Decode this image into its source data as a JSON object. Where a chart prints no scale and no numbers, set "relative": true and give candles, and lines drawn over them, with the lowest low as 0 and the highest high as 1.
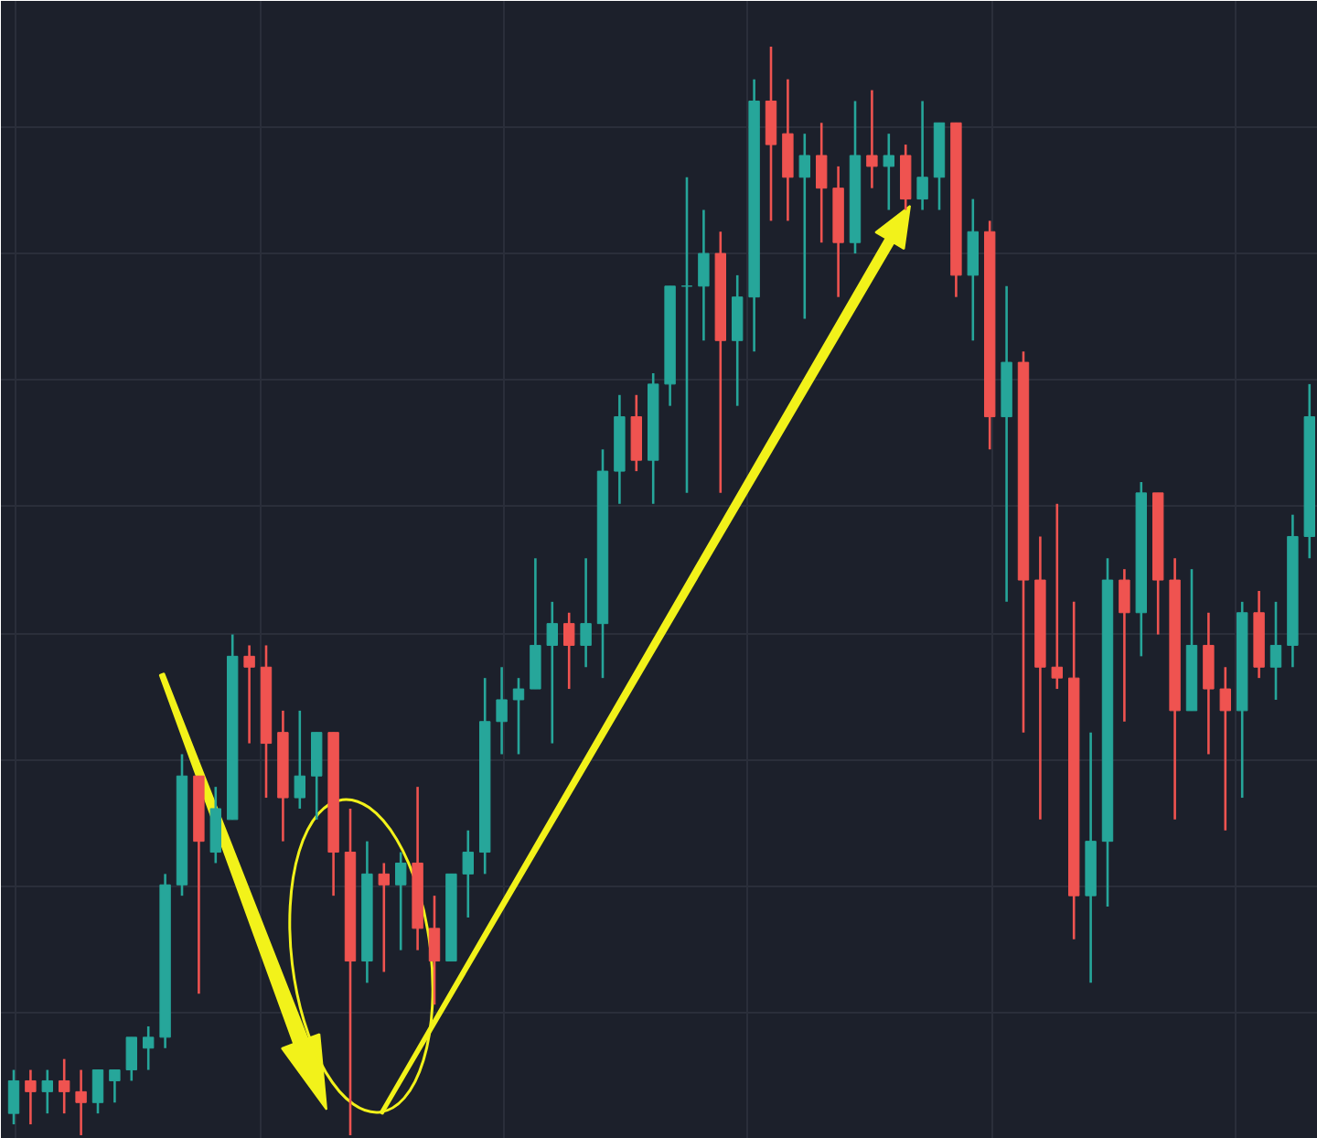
{
  "chart_data": {
    "type": "candlestick",
    "relative": true,
    "grid": true,
    "categories": [
      null,
      null,
      null,
      null,
      null,
      null,
      null,
      null,
      null,
      null,
      null,
      null,
      null,
      null,
      null,
      null,
      null,
      null,
      null,
      null,
      null,
      null,
      null,
      null,
      null,
      null,
      null,
      null,
      null,
      null,
      null,
      null,
      null,
      null,
      null,
      null,
      null,
      null,
      null,
      null,
      null,
      null,
      null,
      null,
      null,
      null,
      null,
      null,
      null,
      null,
      null,
      null,
      null,
      null,
      null,
      null,
      null,
      null,
      null,
      null,
      null,
      null,
      null,
      null,
      null,
      null,
      null,
      null,
      null,
      null,
      null,
      null,
      null,
      null,
      null,
      null,
      null,
      null
    ],
    "ohlc": [
      [
        0.02,
        0.06,
        0.01,
        0.05
      ],
      [
        0.05,
        0.06,
        0.01,
        0.04
      ],
      [
        0.04,
        0.06,
        0.02,
        0.05
      ],
      [
        0.05,
        0.07,
        0.02,
        0.04
      ],
      [
        0.04,
        0.06,
        0,
        0.03
      ],
      [
        0.03,
        0.06,
        0.02,
        0.06
      ],
      [
        0.05,
        0.06,
        0.03,
        0.06
      ],
      [
        0.06,
        0.09,
        0.05,
        0.09
      ],
      [
        0.08,
        0.1,
        0.06,
        0.09
      ],
      [
        0.09,
        0.24,
        0.08,
        0.23
      ],
      [
        0.23,
        0.35,
        0.22,
        0.33
      ],
      [
        0.33,
        0.33,
        0.13,
        0.27
      ],
      [
        0.26,
        0.32,
        0.25,
        0.3
      ],
      [
        0.29,
        0.46,
        0.29,
        0.44
      ],
      [
        0.44,
        0.45,
        0.36,
        0.43
      ],
      [
        0.43,
        0.45,
        0.31,
        0.36
      ],
      [
        0.37,
        0.39,
        0.27,
        0.31
      ],
      [
        0.31,
        0.39,
        0.3,
        0.33
      ],
      [
        0.33,
        0.37,
        0.29,
        0.37
      ],
      [
        0.37,
        0.37,
        0.22,
        0.26
      ],
      [
        0.26,
        0.3,
        0,
        0.16
      ],
      [
        0.16,
        0.27,
        0.14,
        0.24
      ],
      [
        0.24,
        0.25,
        0.15,
        0.23
      ],
      [
        0.23,
        0.26,
        0.17,
        0.25
      ],
      [
        0.25,
        0.32,
        0.17,
        0.19
      ],
      [
        0.19,
        0.22,
        0.12,
        0.16
      ],
      [
        0.16,
        0.24,
        0.16,
        0.24
      ],
      [
        0.24,
        0.28,
        0.2,
        0.26
      ],
      [
        0.26,
        0.42,
        0.24,
        0.38
      ],
      [
        0.38,
        0.43,
        0.35,
        0.4
      ],
      [
        0.4,
        0.42,
        0.35,
        0.41
      ],
      [
        0.41,
        0.53,
        0.41,
        0.45
      ],
      [
        0.45,
        0.49,
        0.36,
        0.47
      ],
      [
        0.47,
        0.48,
        0.41,
        0.45
      ],
      [
        0.45,
        0.53,
        0.43,
        0.47
      ],
      [
        0.47,
        0.63,
        0.42,
        0.61
      ],
      [
        0.61,
        0.68,
        0.58,
        0.66
      ],
      [
        0.66,
        0.68,
        0.61,
        0.62
      ],
      [
        0.62,
        0.7,
        0.58,
        0.69
      ],
      [
        0.69,
        0.78,
        0.67,
        0.78
      ],
      [
        0.78,
        0.88,
        0.59,
        0.78
      ],
      [
        0.78,
        0.85,
        0.73,
        0.81
      ],
      [
        0.81,
        0.83,
        0.59,
        0.73
      ],
      [
        0.73,
        0.79,
        0.67,
        0.77
      ],
      [
        0.77,
        0.97,
        0.72,
        0.95
      ],
      [
        0.95,
        1,
        0.84,
        0.91
      ],
      [
        0.92,
        0.97,
        0.84,
        0.88
      ],
      [
        0.88,
        0.92,
        0.75,
        0.9
      ],
      [
        0.9,
        0.93,
        0.82,
        0.87
      ],
      [
        0.87,
        0.89,
        0.77,
        0.82
      ],
      [
        0.82,
        0.95,
        0.81,
        0.9
      ],
      [
        0.9,
        0.96,
        0.87,
        0.89
      ],
      [
        0.89,
        0.92,
        0.85,
        0.9
      ],
      [
        0.9,
        0.91,
        0.85,
        0.86
      ],
      [
        0.86,
        0.95,
        0.85,
        0.88
      ],
      [
        0.88,
        0.93,
        0.85,
        0.93
      ],
      [
        0.93,
        0.93,
        0.77,
        0.79
      ],
      [
        0.79,
        0.86,
        0.73,
        0.83
      ],
      [
        0.83,
        0.84,
        0.63,
        0.66
      ],
      [
        0.66,
        0.78,
        0.49,
        0.71
      ],
      [
        0.71,
        0.72,
        0.37,
        0.51
      ],
      [
        0.51,
        0.55,
        0.29,
        0.43
      ],
      [
        0.43,
        0.58,
        0.41,
        0.42
      ],
      [
        0.42,
        0.49,
        0.18,
        0.22
      ],
      [
        0.22,
        0.37,
        0.14,
        0.27
      ],
      [
        0.27,
        0.53,
        0.21,
        0.51
      ],
      [
        0.51,
        0.52,
        0.38,
        0.48
      ],
      [
        0.48,
        0.6,
        0.44,
        0.59
      ],
      [
        0.59,
        0.59,
        0.46,
        0.51
      ],
      [
        0.51,
        0.53,
        0.29,
        0.39
      ],
      [
        0.39,
        0.52,
        0.39,
        0.45
      ],
      [
        0.45,
        0.48,
        0.35,
        0.41
      ],
      [
        0.41,
        0.43,
        0.28,
        0.39
      ],
      [
        0.39,
        0.49,
        0.31,
        0.48
      ],
      [
        0.48,
        0.5,
        0.42,
        0.43
      ],
      [
        0.43,
        0.49,
        0.4,
        0.45
      ],
      [
        0.45,
        0.57,
        0.43,
        0.55
      ],
      [
        0.55,
        0.69,
        0.53,
        0.66
      ]
    ]
  }
}
